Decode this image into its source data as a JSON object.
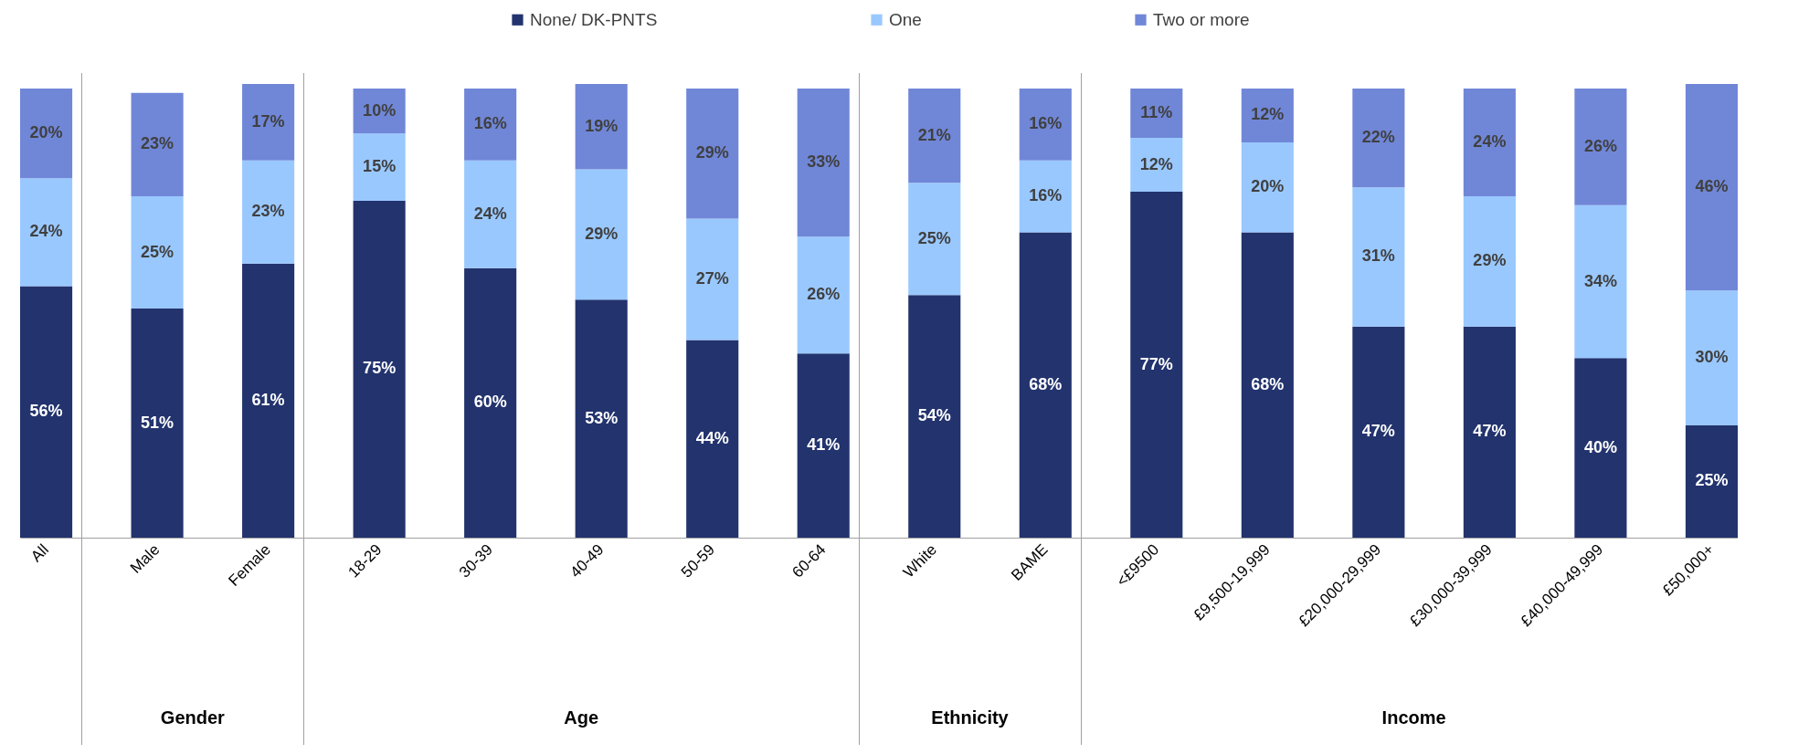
{
  "chart_data": {
    "type": "bar",
    "stacked": true,
    "legend": "top",
    "grid": false,
    "categories": [
      "All",
      "Male",
      "Female",
      "18-29",
      "30-39",
      "40-49",
      "50-59",
      "60-64",
      "White",
      "BAME",
      "<£9500",
      "£9,500-19,999",
      "£20,000-29,999",
      "£30,000-39,999",
      "£40,000-49,999",
      "£50,000+"
    ],
    "series": [
      {
        "name": "None/ DK-PNTS",
        "color": "#22336e",
        "values": [
          56,
          51,
          61,
          75,
          60,
          53,
          44,
          41,
          54,
          68,
          77,
          68,
          47,
          47,
          40,
          25
        ],
        "value_labels": [
          "56%",
          "51%",
          "61%",
          "75%",
          "60%",
          "53%",
          "44%",
          "41%",
          "54%",
          "68%",
          "77%",
          "68%",
          "47%",
          "47%",
          "40%",
          "25%"
        ]
      },
      {
        "name": "One",
        "color": "#99c8ff",
        "values": [
          24,
          25,
          23,
          15,
          24,
          29,
          27,
          26,
          25,
          16,
          12,
          20,
          31,
          29,
          34,
          30
        ],
        "value_labels": [
          "24%",
          "25%",
          "23%",
          "15%",
          "24%",
          "29%",
          "27%",
          "26%",
          "25%",
          "16%",
          "12%",
          "20%",
          "31%",
          "29%",
          "34%",
          "30%"
        ]
      },
      {
        "name": "Two or more",
        "color": "#7087d8",
        "values": [
          20,
          23,
          17,
          10,
          16,
          19,
          29,
          33,
          21,
          16,
          11,
          12,
          22,
          24,
          26,
          46
        ],
        "value_labels": [
          "20%",
          "23%",
          "17%",
          "10%",
          "16%",
          "19%",
          "29%",
          "33%",
          "21%",
          "16%",
          "11%",
          "12%",
          "22%",
          "24%",
          "26%",
          "46%"
        ]
      }
    ],
    "annotations": [
      "Gender",
      "Age",
      "Ethnicity",
      "Income"
    ]
  }
}
